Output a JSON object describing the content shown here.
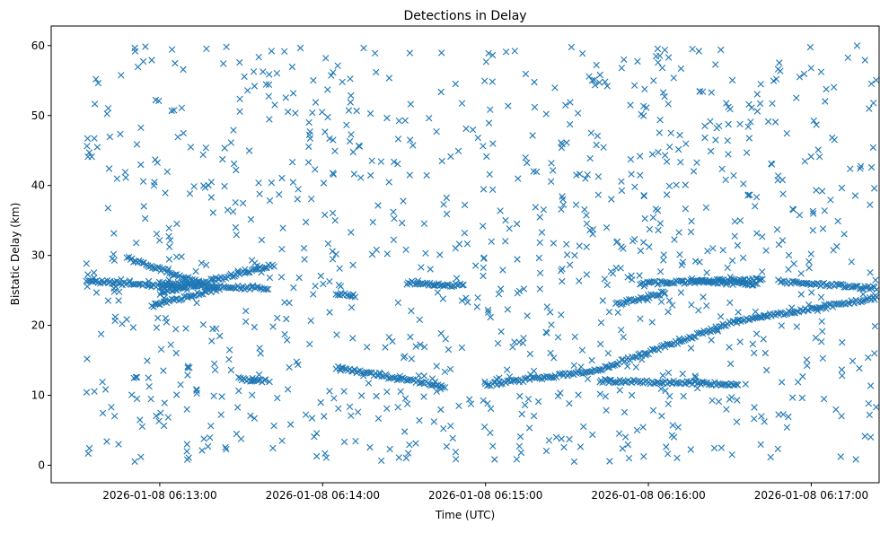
{
  "chart_data": {
    "type": "scatter",
    "title": "Detections in Delay",
    "xlabel": "Time (UTC)",
    "ylabel": "Bistatic Delay (km)",
    "marker": "x",
    "color": "#1f77b4",
    "grid": false,
    "xlim": [
      "2026-01-08 06:12:20",
      "2026-01-08 06:17:25"
    ],
    "ylim": [
      -2.5,
      62.8
    ],
    "x_ticks": [
      {
        "time": "2026-01-08 06:13:00",
        "label": "2026-01-08 06:13:00"
      },
      {
        "time": "2026-01-08 06:14:00",
        "label": "2026-01-08 06:14:00"
      },
      {
        "time": "2026-01-08 06:15:00",
        "label": "2026-01-08 06:15:00"
      },
      {
        "time": "2026-01-08 06:16:00",
        "label": "2026-01-08 06:16:00"
      },
      {
        "time": "2026-01-08 06:17:00",
        "label": "2026-01-08 06:17:00"
      }
    ],
    "y_ticks": [
      0,
      10,
      20,
      30,
      40,
      50,
      60
    ],
    "y_tick_labels": [
      "0",
      "10",
      "20",
      "30",
      "40",
      "50",
      "60"
    ],
    "time_range": [
      "2026-01-08 06:12:33",
      "2026-01-08 06:17:24"
    ],
    "tracks": [
      {
        "t_start": "2026-01-08 06:12:33",
        "t_end": "2026-01-08 06:13:10",
        "delay_start": 26.4,
        "delay_end": 25.3
      },
      {
        "t_start": "2026-01-08 06:12:48",
        "t_end": "2026-01-08 06:13:15",
        "delay_start": 29.6,
        "delay_end": 26.1
      },
      {
        "t_start": "2026-01-08 06:13:00",
        "t_end": "2026-01-08 06:13:42",
        "delay_start": 24.6,
        "delay_end": 28.6
      },
      {
        "t_start": "2026-01-08 06:12:57",
        "t_end": "2026-01-08 06:13:22",
        "delay_start": 22.8,
        "delay_end": 25.3
      },
      {
        "t_start": "2026-01-08 06:13:00",
        "t_end": "2026-01-08 06:13:40",
        "delay_start": 26.0,
        "delay_end": 25.2
      },
      {
        "t_start": "2026-01-08 06:13:29",
        "t_end": "2026-01-08 06:13:39",
        "delay_start": 12.4,
        "delay_end": 12.0
      },
      {
        "t_start": "2026-01-08 06:14:05",
        "t_end": "2026-01-08 06:14:45",
        "delay_start": 13.9,
        "delay_end": 11.3
      },
      {
        "t_start": "2026-01-08 06:14:05",
        "t_end": "2026-01-08 06:14:12",
        "delay_start": 24.5,
        "delay_end": 24.3
      },
      {
        "t_start": "2026-01-08 06:14:31",
        "t_end": "2026-01-08 06:14:52",
        "delay_start": 26.1,
        "delay_end": 25.7
      },
      {
        "t_start": "2026-01-08 06:15:00",
        "t_end": "2026-01-08 06:15:42",
        "delay_start": 11.5,
        "delay_end": 13.6
      },
      {
        "t_start": "2026-01-08 06:15:42",
        "t_end": "2026-01-08 06:16:33",
        "delay_start": 13.7,
        "delay_end": 20.7
      },
      {
        "t_start": "2026-01-08 06:16:33",
        "t_end": "2026-01-08 06:17:24",
        "delay_start": 20.7,
        "delay_end": 23.9
      },
      {
        "t_start": "2026-01-08 06:15:42",
        "t_end": "2026-01-08 06:16:33",
        "delay_start": 12.1,
        "delay_end": 11.6
      },
      {
        "t_start": "2026-01-08 06:15:48",
        "t_end": "2026-01-08 06:16:06",
        "delay_start": 23.0,
        "delay_end": 24.7
      },
      {
        "t_start": "2026-01-08 06:15:57",
        "t_end": "2026-01-08 06:16:42",
        "delay_start": 26.0,
        "delay_end": 26.6
      },
      {
        "t_start": "2026-01-08 06:16:16",
        "t_end": "2026-01-08 06:16:40",
        "delay_start": 26.5,
        "delay_end": 25.7
      },
      {
        "t_start": "2026-01-08 06:16:48",
        "t_end": "2026-01-08 06:17:24",
        "delay_start": 26.3,
        "delay_end": 25.3
      }
    ],
    "noise": {
      "points": 1050,
      "delay_range": [
        0.5,
        60.0
      ]
    }
  }
}
